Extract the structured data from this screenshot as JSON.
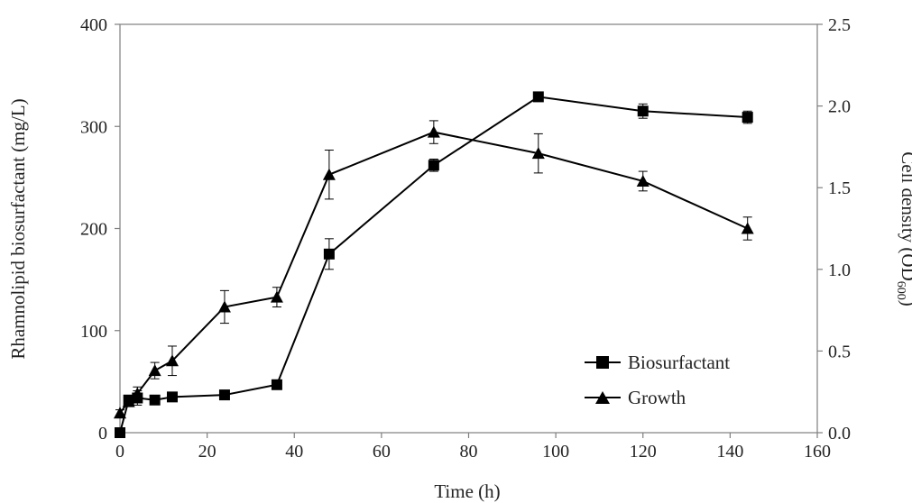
{
  "chart_data": {
    "type": "line",
    "title": "",
    "xlabel": "Time (h)",
    "ylabel_left": "Rhamnolipid biosurfactant (mg/L)",
    "ylabel_right_main": "Cell density (OD",
    "ylabel_right_sub": "600",
    "ylabel_right_end": ")",
    "xlim": [
      0,
      160
    ],
    "ylim_left": [
      0,
      400
    ],
    "ylim_right": [
      0,
      2.5
    ],
    "x_ticks": [
      "0",
      "20",
      "40",
      "60",
      "80",
      "100",
      "120",
      "140",
      "160"
    ],
    "y_left_ticks": [
      "0",
      "100",
      "200",
      "300",
      "400"
    ],
    "y_right_ticks": [
      "0.0",
      "0.5",
      "1.0",
      "1.5",
      "2.0",
      "2.5"
    ],
    "grid": false,
    "legend_position": "bottom-right",
    "series": [
      {
        "name": "Biosurfactant",
        "axis": "left",
        "marker": "square",
        "x": [
          0,
          2,
          4,
          8,
          12,
          24,
          36,
          48,
          72,
          96,
          120,
          144
        ],
        "y": [
          0,
          32,
          34,
          32,
          35,
          37,
          47,
          175,
          262,
          329,
          315,
          309
        ],
        "err": [
          0,
          0,
          7,
          0,
          0,
          0,
          0,
          15,
          6,
          4,
          7,
          6
        ]
      },
      {
        "name": "Growth",
        "axis": "right",
        "marker": "triangle",
        "x": [
          0,
          2,
          4,
          8,
          12,
          24,
          36,
          48,
          72,
          96,
          120,
          144
        ],
        "y": [
          0.12,
          0.19,
          0.24,
          0.38,
          0.44,
          0.77,
          0.83,
          1.58,
          1.84,
          1.71,
          1.54,
          1.25
        ],
        "err": [
          0.02,
          0.03,
          0.04,
          0.05,
          0.09,
          0.1,
          0.06,
          0.15,
          0.07,
          0.12,
          0.06,
          0.07
        ]
      }
    ]
  }
}
